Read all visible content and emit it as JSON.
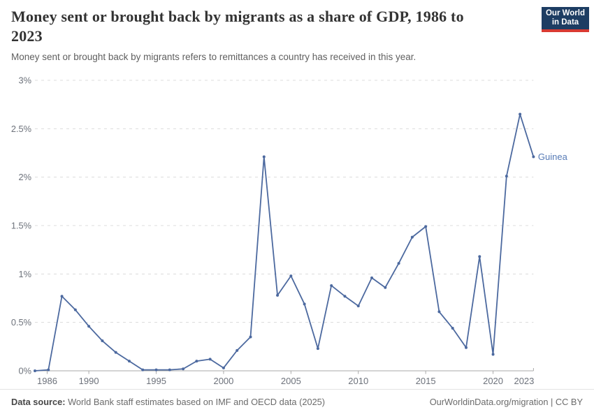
{
  "header": {
    "title": "Money sent or brought back by migrants as a share of GDP, 1986 to 2023",
    "title_lines": [
      "Money sent or brought back by migrants as a share of GDP, 1986 to",
      "2023"
    ],
    "subtitle": "Money sent or brought back by migrants refers to remittances a country has received in this year.",
    "logo": {
      "line1": "Our World",
      "line2": "in Data"
    }
  },
  "chart_data": {
    "type": "line",
    "title": "Money sent or brought back by migrants as a share of GDP, 1986 to 2023",
    "subtitle": "Money sent or brought back by migrants refers to remittances a country has received in this year.",
    "x": [
      1986,
      1987,
      1988,
      1989,
      1990,
      1991,
      1992,
      1993,
      1994,
      1995,
      1996,
      1997,
      1998,
      1999,
      2000,
      2001,
      2002,
      2003,
      2004,
      2005,
      2006,
      2007,
      2008,
      2009,
      2010,
      2011,
      2012,
      2013,
      2014,
      2015,
      2016,
      2017,
      2018,
      2019,
      2020,
      2021,
      2022,
      2023
    ],
    "series": [
      {
        "name": "Guinea",
        "values": [
          0.0,
          0.01,
          0.77,
          0.63,
          0.46,
          0.31,
          0.19,
          0.1,
          0.01,
          0.01,
          0.01,
          0.02,
          0.1,
          0.12,
          0.03,
          0.21,
          0.35,
          2.21,
          0.78,
          0.98,
          0.69,
          0.23,
          0.88,
          0.77,
          0.67,
          0.96,
          0.86,
          1.11,
          1.38,
          1.49,
          0.61,
          0.44,
          0.24,
          1.18,
          0.17,
          2.01,
          2.65,
          2.21
        ]
      }
    ],
    "xlabel": "",
    "ylabel": "",
    "xlim": [
      1986,
      2023
    ],
    "ylim": [
      0,
      3
    ],
    "x_ticks": [
      {
        "v": 1986,
        "label": "1986"
      },
      {
        "v": 1990,
        "label": "1990"
      },
      {
        "v": 1995,
        "label": "1995"
      },
      {
        "v": 2000,
        "label": "2000"
      },
      {
        "v": 2005,
        "label": "2005"
      },
      {
        "v": 2010,
        "label": "2010"
      },
      {
        "v": 2015,
        "label": "2015"
      },
      {
        "v": 2020,
        "label": "2020"
      },
      {
        "v": 2023,
        "label": "2023"
      }
    ],
    "y_ticks": [
      {
        "v": 0,
        "label": "0%"
      },
      {
        "v": 0.5,
        "label": "0.5%"
      },
      {
        "v": 1,
        "label": "1%"
      },
      {
        "v": 1.5,
        "label": "1.5%"
      },
      {
        "v": 2,
        "label": "2%"
      },
      {
        "v": 2.5,
        "label": "2.5%"
      },
      {
        "v": 3,
        "label": "3%"
      }
    ],
    "grid": "horizontal-dashed",
    "legend": "line-end-label"
  },
  "footer": {
    "source_label": "Data source:",
    "source_text": " World Bank staff estimates based on IMF and OECD data (2025)",
    "attribution": "OurWorldinData.org/migration | CC BY"
  },
  "colors": {
    "line": "#4c699f",
    "end_label": "#577bb6",
    "grid": "#dcdcdc",
    "axis": "#a9a9a9",
    "tick_text": "#6d727b",
    "title": "#333333",
    "subtitle": "#5f5f5f",
    "footer_text": "#6b6b6b",
    "logo_bg": "#1d3d63",
    "logo_red": "#d93a32"
  }
}
